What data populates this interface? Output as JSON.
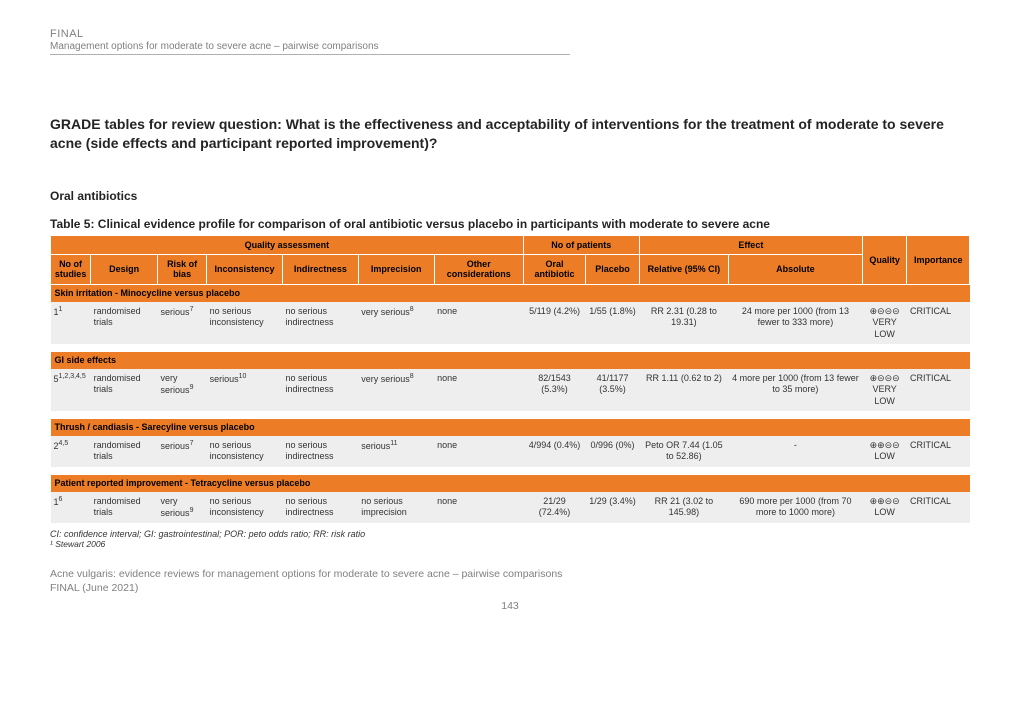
{
  "header": {
    "final": "FINAL",
    "subtitle": "Management options for moderate to severe acne – pairwise comparisons"
  },
  "title": "GRADE tables for review question: What is the effectiveness and acceptability of interventions for the treatment of moderate to severe acne (side effects and participant reported improvement)?",
  "section_heading": "Oral antibiotics",
  "table_caption": "Table 5:   Clinical evidence profile for comparison of oral antibiotic versus placebo in participants with moderate to severe acne",
  "table": {
    "colors": {
      "header_bg": "#ec7d26",
      "row_bg": "#eeeeee",
      "border": "#ffffff",
      "text": "#000000"
    },
    "header_top": {
      "quality_assessment": "Quality assessment",
      "no_patients": "No of patients",
      "effect": "Effect",
      "quality": "Quality",
      "importance": "Importance"
    },
    "header_sub": {
      "no_studies": "No of studies",
      "design": "Design",
      "risk_bias": "Risk of bias",
      "inconsistency": "Inconsistency",
      "indirectness": "Indirectness",
      "imprecision": "Imprecision",
      "other": "Other considerations",
      "oral_ab": "Oral antibiotic",
      "placebo": "Placebo",
      "relative": "Relative (95% CI)",
      "absolute": "Absolute"
    },
    "groups": [
      {
        "label": "Skin irritation - Minocycline versus placebo",
        "rows": [
          {
            "n": "1",
            "nsup": "1",
            "design": "randomised trials",
            "rob": "serious",
            "robsup": "7",
            "incon": "no serious inconsistency",
            "indir": "no serious indirectness",
            "imprec": "very serious",
            "imprecsup": "8",
            "other": "none",
            "oral": "5/119 (4.2%)",
            "placebo": "1/55 (1.8%)",
            "rel": "RR 2.31 (0.28 to 19.31)",
            "abs": "24 more per 1000 (from 13 fewer to 333 more)",
            "quality": "⊕⊝⊝⊝ VERY LOW",
            "imp": "CRITICAL"
          }
        ]
      },
      {
        "label": "GI side effects",
        "rows": [
          {
            "n": "5",
            "nsup": "1,2,3,4,5",
            "design": "randomised trials",
            "rob": "very serious",
            "robsup": "9",
            "incon": "serious",
            "inconsup": "10",
            "indir": "no serious indirectness",
            "imprec": "very serious",
            "imprecsup": "8",
            "other": "none",
            "oral": "82/1543 (5.3%)",
            "placebo": "41/1177 (3.5%)",
            "rel": "RR 1.11 (0.62 to 2)",
            "abs": "4 more per 1000 (from 13 fewer to 35 more)",
            "quality": "⊕⊝⊝⊝ VERY LOW",
            "imp": "CRITICAL"
          }
        ]
      },
      {
        "label": "Thrush / candiasis - Sarecyline versus placebo",
        "rows": [
          {
            "n": "2",
            "nsup": "4,5",
            "design": "randomised trials",
            "rob": "serious",
            "robsup": "7",
            "incon": "no serious inconsistency",
            "indir": "no serious indirectness",
            "imprec": "serious",
            "imprecsup": "11",
            "other": "none",
            "oral": "4/994 (0.4%)",
            "placebo": "0/996 (0%)",
            "rel": "Peto OR 7.44 (1.05 to 52.86)",
            "abs": "-",
            "quality": "⊕⊕⊝⊝ LOW",
            "imp": "CRITICAL"
          }
        ]
      },
      {
        "label": "Patient reported improvement - Tetracycline versus placebo",
        "rows": [
          {
            "n": "1",
            "nsup": "6",
            "design": "randomised trials",
            "rob": "very serious",
            "robsup": "9",
            "incon": "no serious inconsistency",
            "indir": "no serious indirectness",
            "imprec": "no serious imprecision",
            "imprecsup": "",
            "other": "none",
            "oral": "21/29 (72.4%)",
            "placebo": "1/29 (3.4%)",
            "rel": "RR 21 (3.02 to 145.98)",
            "abs": "690 more per 1000 (from 70 more to 1000 more)",
            "quality": "⊕⊕⊝⊝ LOW",
            "imp": "CRITICAL"
          }
        ]
      }
    ]
  },
  "abbrev": "CI: confidence interval; GI: gastrointestinal; POR: peto odds ratio; RR: risk ratio",
  "footref": "¹ Stewart 2006",
  "footer": "Acne vulgaris: evidence reviews for management options for moderate to severe acne – pairwise comparisons FINAL (June 2021)",
  "page_no": "143",
  "col_widths_pct": [
    4.5,
    7.5,
    5.5,
    8.5,
    8.5,
    8.5,
    10,
    7,
    6,
    10,
    15,
    5,
    7
  ]
}
